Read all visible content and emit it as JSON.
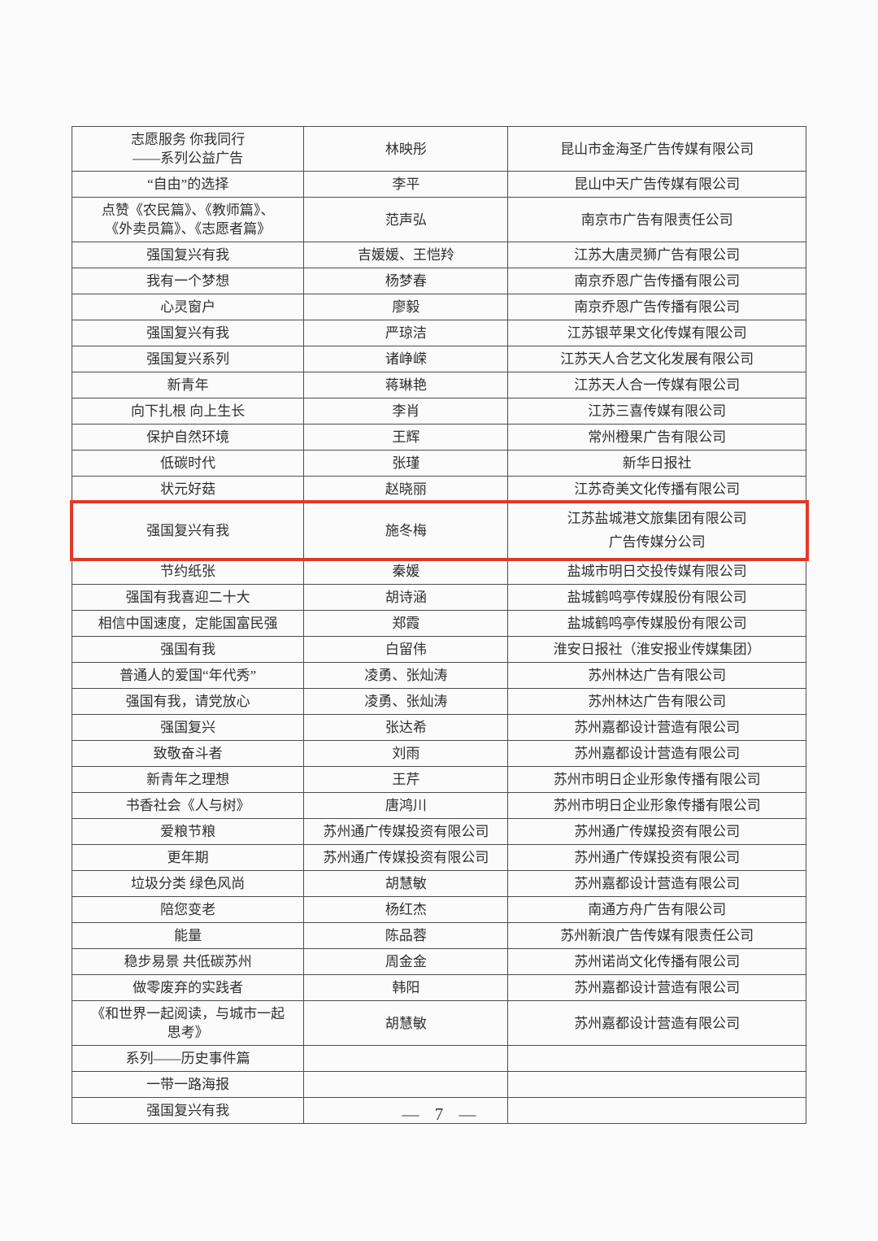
{
  "page": {
    "footer": "— 7 —",
    "number": "7"
  },
  "colors": {
    "highlight_border": "#e03a26",
    "table_line": "#4d4d4d",
    "ink": "#2e2e2e",
    "paper": "#fbfbfb"
  },
  "table": {
    "rows": [
      {
        "title": "志愿服务 你我同行\n——系列公益广告",
        "author": "林映彤",
        "company": "昆山市金海圣广告传媒有限公司",
        "highlighted": false
      },
      {
        "title": "“自由”的选择",
        "author": "李平",
        "company": "昆山中天广告传媒有限公司",
        "highlighted": false
      },
      {
        "title": "点赞《农民篇》、《教师篇》、\n《外卖员篇》、《志愿者篇》",
        "author": "范声弘",
        "company": "南京市广告有限责任公司",
        "highlighted": false
      },
      {
        "title": "强国复兴有我",
        "author": "吉媛媛、王恺羚",
        "company": "江苏大唐灵狮广告有限公司",
        "highlighted": false
      },
      {
        "title": "我有一个梦想",
        "author": "杨梦春",
        "company": "南京乔恩广告传播有限公司",
        "highlighted": false
      },
      {
        "title": "心灵窗户",
        "author": "廖毅",
        "company": "南京乔恩广告传播有限公司",
        "highlighted": false
      },
      {
        "title": "强国复兴有我",
        "author": "严琼洁",
        "company": "江苏银苹果文化传媒有限公司",
        "highlighted": false
      },
      {
        "title": "强国复兴系列",
        "author": "诸峥嵘",
        "company": "江苏天人合艺文化发展有限公司",
        "highlighted": false
      },
      {
        "title": "新青年",
        "author": "蒋琳艳",
        "company": "江苏天人合一传媒有限公司",
        "highlighted": false
      },
      {
        "title": "向下扎根 向上生长",
        "author": "李肖",
        "company": "江苏三喜传媒有限公司",
        "highlighted": false
      },
      {
        "title": "保护自然环境",
        "author": "王辉",
        "company": "常州橙果广告有限公司",
        "highlighted": false
      },
      {
        "title": "低碳时代",
        "author": "张瑾",
        "company": "新华日报社",
        "highlighted": false
      },
      {
        "title": "状元好菇",
        "author": "赵晓丽",
        "company": "江苏奇美文化传播有限公司",
        "highlighted": false
      },
      {
        "title": "强国复兴有我",
        "author": "施冬梅",
        "company": "江苏盐城港文旅集团有限公司\n广告传媒分公司",
        "highlighted": true
      },
      {
        "title": "节约纸张",
        "author": "秦媛",
        "company": "盐城市明日交投传媒有限公司",
        "highlighted": false
      },
      {
        "title": "强国有我喜迎二十大",
        "author": "胡诗涵",
        "company": "盐城鹤鸣亭传媒股份有限公司",
        "highlighted": false
      },
      {
        "title": "相信中国速度，定能国富民强",
        "author": "郑霞",
        "company": "盐城鹤鸣亭传媒股份有限公司",
        "highlighted": false
      },
      {
        "title": "强国有我",
        "author": "白留伟",
        "company": "淮安日报社（淮安报业传媒集团）",
        "highlighted": false
      },
      {
        "title": "普通人的爱国“年代秀”",
        "author": "凌勇、张灿涛",
        "company": "苏州林达广告有限公司",
        "highlighted": false
      },
      {
        "title": "强国有我，请党放心",
        "author": "凌勇、张灿涛",
        "company": "苏州林达广告有限公司",
        "highlighted": false
      },
      {
        "title": "强国复兴",
        "author": "张达希",
        "company": "苏州嘉都设计营造有限公司",
        "highlighted": false
      },
      {
        "title": "致敬奋斗者",
        "author": "刘雨",
        "company": "苏州嘉都设计营造有限公司",
        "highlighted": false
      },
      {
        "title": "新青年之理想",
        "author": "王芹",
        "company": "苏州市明日企业形象传播有限公司",
        "highlighted": false
      },
      {
        "title": "书香社会《人与树》",
        "author": "唐鸿川",
        "company": "苏州市明日企业形象传播有限公司",
        "highlighted": false
      },
      {
        "title": "爱粮节粮",
        "author": "苏州通广传媒投资有限公司",
        "company": "苏州通广传媒投资有限公司",
        "highlighted": false
      },
      {
        "title": "更年期",
        "author": "苏州通广传媒投资有限公司",
        "company": "苏州通广传媒投资有限公司",
        "highlighted": false
      },
      {
        "title": "垃圾分类 绿色风尚",
        "author": "胡慧敏",
        "company": "苏州嘉都设计营造有限公司",
        "highlighted": false
      },
      {
        "title": "陪您变老",
        "author": "杨红杰",
        "company": "南通方舟广告有限公司",
        "highlighted": false
      },
      {
        "title": "能量",
        "author": "陈品蓉",
        "company": "苏州新浪广告传媒有限责任公司",
        "highlighted": false
      },
      {
        "title": "稳步易景 共低碳苏州",
        "author": "周金金",
        "company": "苏州诺尚文化传播有限公司",
        "highlighted": false
      },
      {
        "title": "做零废弃的实践者",
        "author": "韩阳",
        "company": "苏州嘉都设计营造有限公司",
        "highlighted": false
      },
      {
        "title": "《和世界一起阅读，与城市一起\n思考》",
        "author": "胡慧敏",
        "company": "苏州嘉都设计营造有限公司",
        "highlighted": false
      },
      {
        "title": "系列——历史事件篇",
        "author": "",
        "company": "",
        "highlighted": false
      },
      {
        "title": "一带一路海报",
        "author": "",
        "company": "",
        "highlighted": false
      },
      {
        "title": "强国复兴有我",
        "author": "",
        "company": "",
        "highlighted": false
      }
    ]
  }
}
